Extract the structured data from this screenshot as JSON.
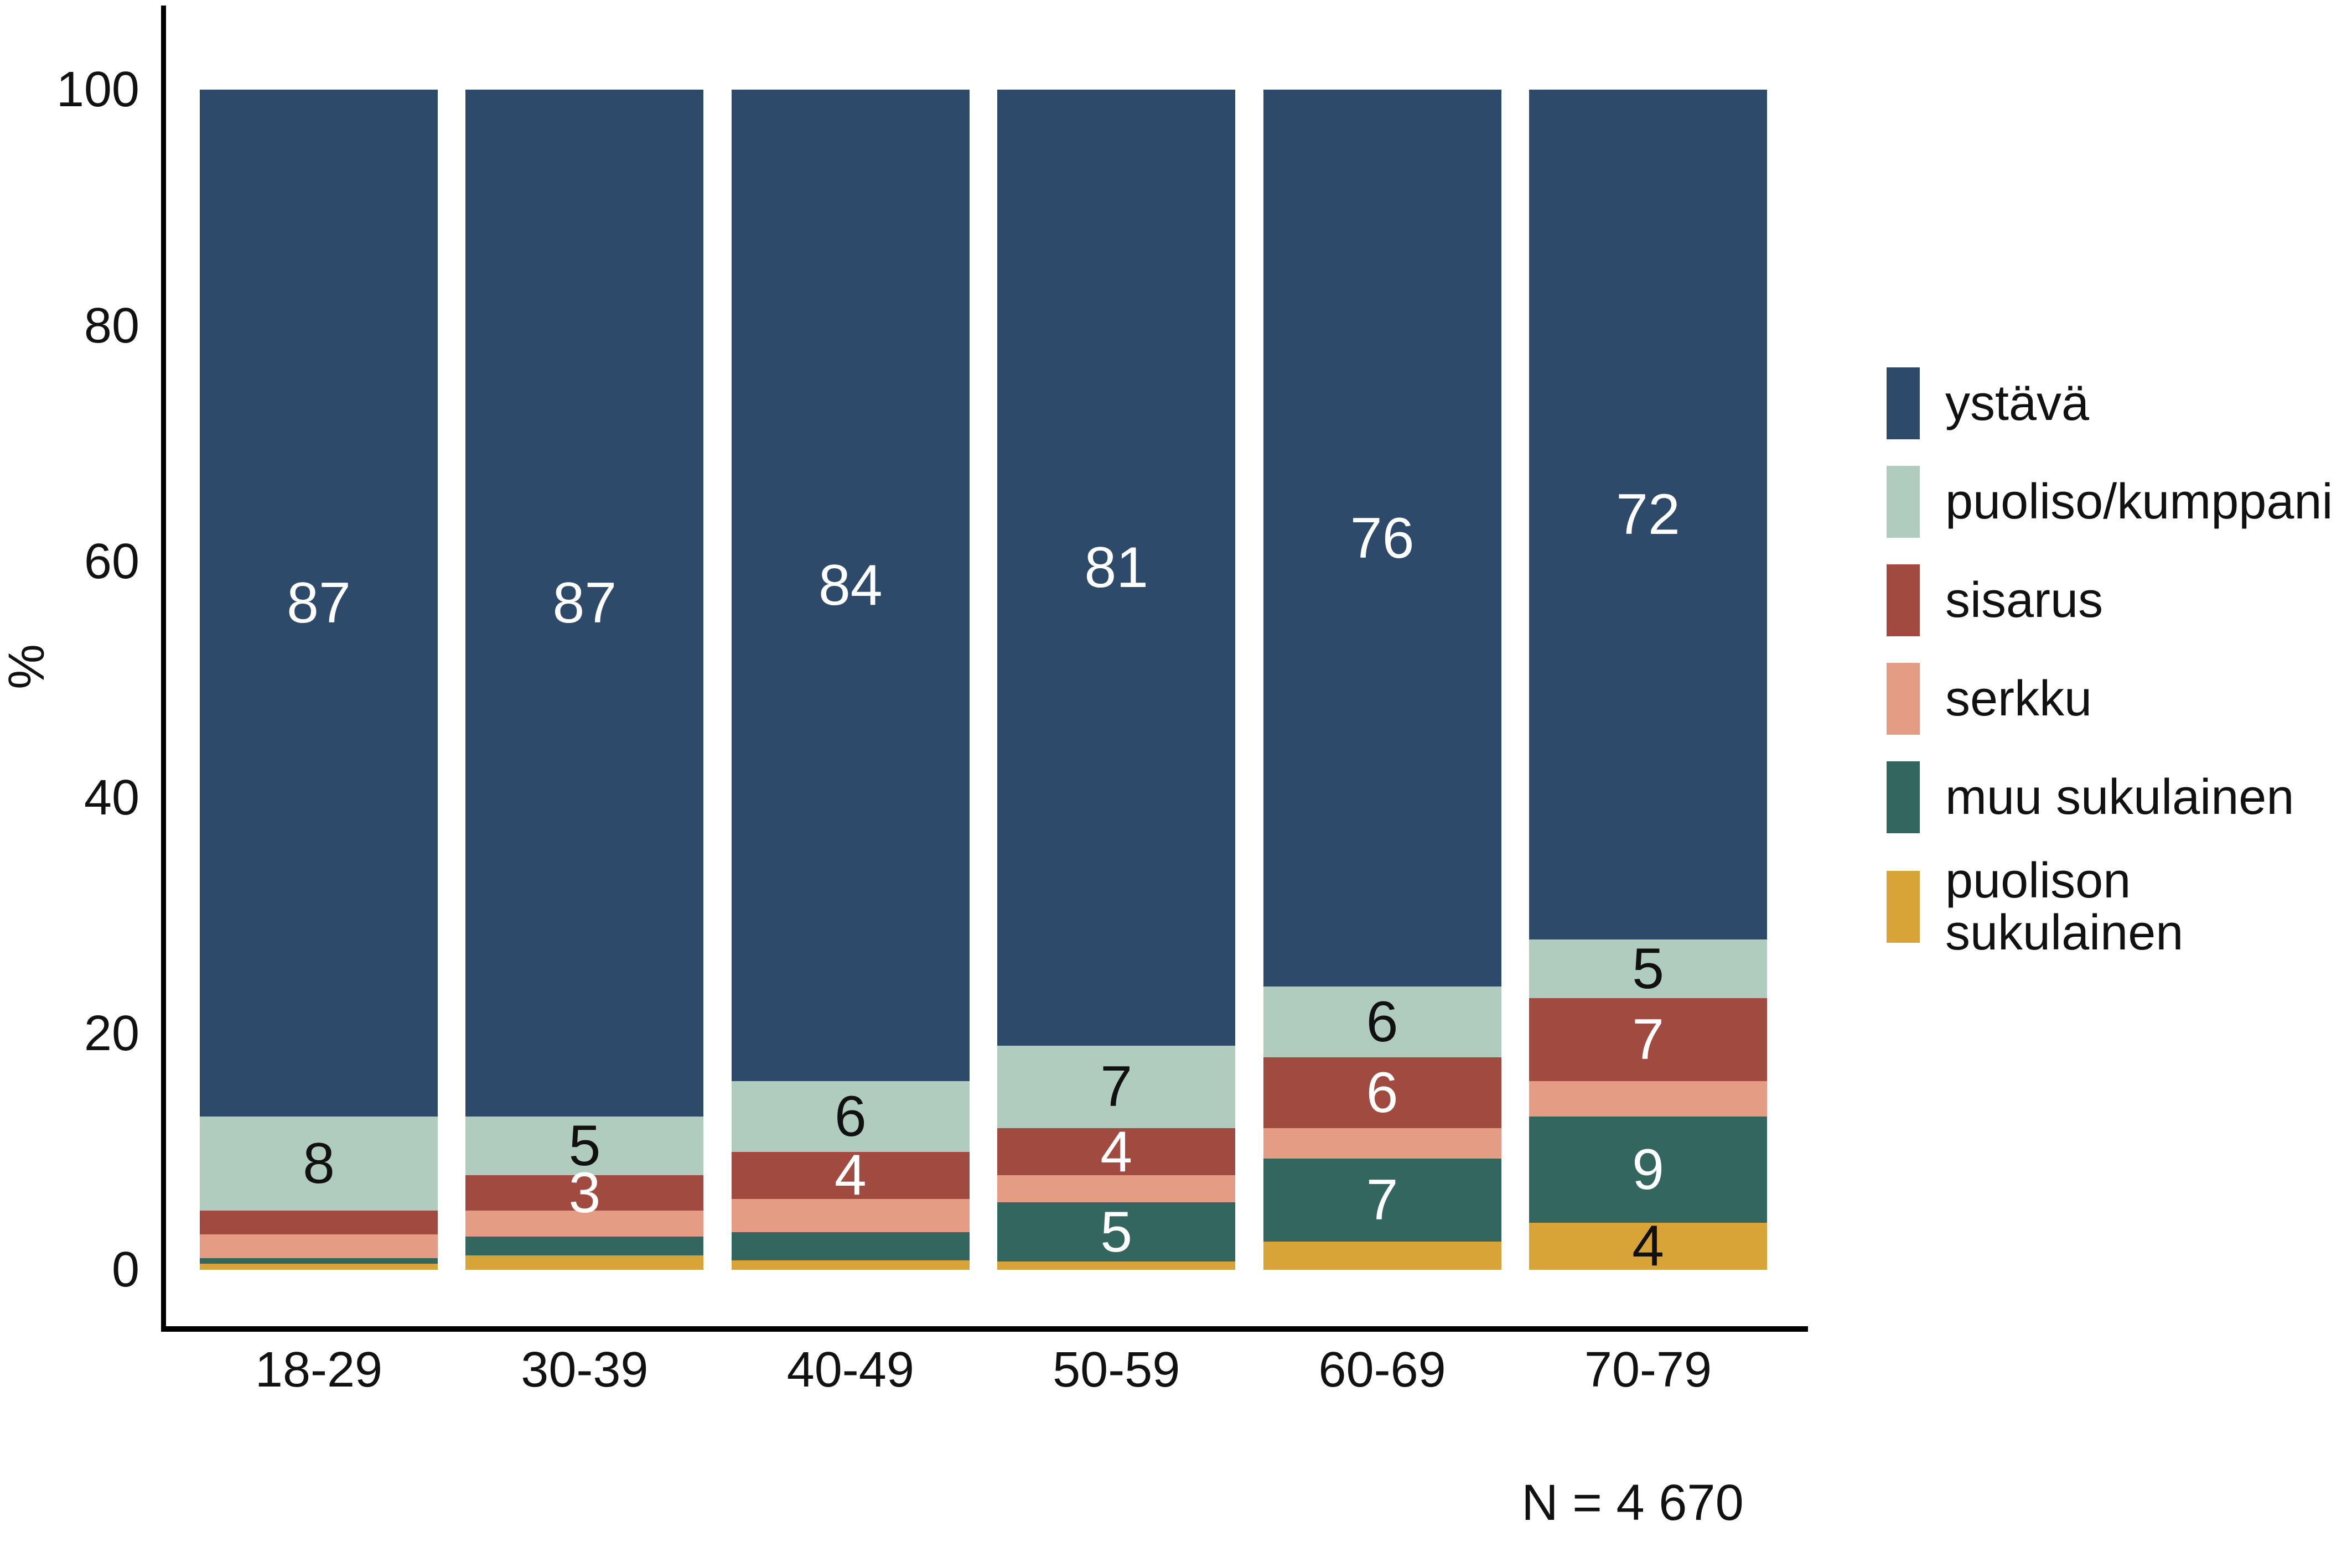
{
  "chart_data": {
    "type": "bar",
    "stacked": true,
    "percent": true,
    "title": "",
    "xlabel": "",
    "ylabel": "%",
    "ylim": [
      0,
      100
    ],
    "yticks": [
      0,
      20,
      40,
      60,
      80,
      100
    ],
    "grid": false,
    "legend_position": "right",
    "annotation": "N = 4 670",
    "categories": [
      "18-29",
      "30-39",
      "40-49",
      "50-59",
      "60-69",
      "70-79"
    ],
    "series": [
      {
        "name": "ystävä",
        "legend_label": "ystävä",
        "color": "#2E4A6B",
        "label_color": "#FFFFFF",
        "values": [
          87,
          87,
          84,
          81,
          76,
          72
        ],
        "labels": [
          "87",
          "87",
          "84",
          "81",
          "76",
          "72"
        ]
      },
      {
        "name": "puoliso/kumppani",
        "legend_label": "puoliso/kumppani",
        "color": "#B0CCBE",
        "label_color": "#111111",
        "values": [
          8,
          5,
          6,
          7,
          6,
          5
        ],
        "labels": [
          "8",
          "5",
          "6",
          "7",
          "6",
          "5"
        ]
      },
      {
        "name": "sisarus",
        "legend_label": "sisarus",
        "color": "#A14B40",
        "label_color": "#FFFFFF",
        "values": [
          2,
          3,
          4,
          4,
          6,
          7
        ],
        "labels": [
          "",
          "3",
          "4",
          "4",
          "6",
          "7"
        ]
      },
      {
        "name": "serkku",
        "legend_label": "serkku",
        "color": "#E49C85",
        "label_color": "#111111",
        "values": [
          2,
          2.2,
          2.8,
          2.3,
          2.6,
          3
        ],
        "labels": [
          "",
          "",
          "",
          "",
          "",
          ""
        ]
      },
      {
        "name": "muu sukulainen",
        "legend_label": "muu sukulainen",
        "color": "#346660",
        "label_color": "#FFFFFF",
        "values": [
          0.5,
          1.6,
          2.4,
          5,
          7,
          9
        ],
        "labels": [
          "",
          "",
          "",
          "5",
          "7",
          "9"
        ]
      },
      {
        "name": "puolison sukulainen",
        "legend_label": "puolison\nsukulainen",
        "color": "#D8A437",
        "label_color": "#111111",
        "values": [
          0.5,
          1.2,
          0.8,
          0.7,
          2.4,
          4
        ],
        "labels": [
          "",
          "",
          "",
          "",
          "",
          "4"
        ]
      }
    ]
  }
}
